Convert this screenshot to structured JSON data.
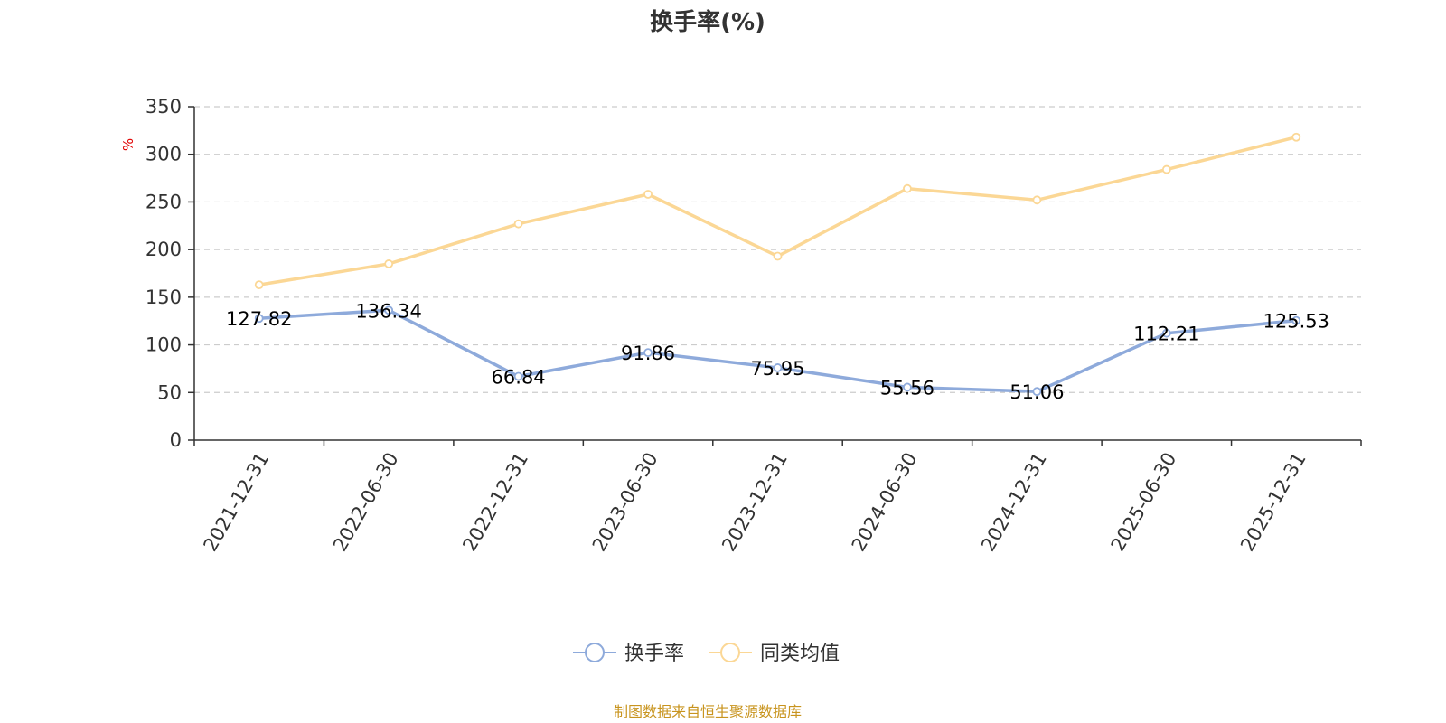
{
  "chart_data": {
    "type": "line",
    "title": "换手率(%)",
    "y_unit": "%",
    "ylim": [
      0,
      350
    ],
    "y_ticks": [
      0,
      50,
      100,
      150,
      200,
      250,
      300,
      350
    ],
    "grid": true,
    "legend_position": "bottom-center",
    "categories": [
      "2021-12-31",
      "2022-06-30",
      "2022-12-31",
      "2023-06-30",
      "2023-12-31",
      "2024-06-30",
      "2024-12-31",
      "2025-06-30",
      "2025-12-31"
    ],
    "series": [
      {
        "name": "换手率",
        "color": "#8eaadb",
        "values": [
          127.82,
          136.34,
          66.84,
          91.86,
          75.95,
          55.56,
          51.06,
          112.21,
          125.53
        ],
        "labels": [
          "127.82",
          "136.34",
          "66.84",
          "91.86",
          "75.95",
          "55.56",
          "51.06",
          "112.21",
          "125.53"
        ],
        "show_labels": true
      },
      {
        "name": "同类均值",
        "color": "#fbd795",
        "values": [
          163,
          185,
          227,
          258,
          193,
          264,
          252,
          284,
          318
        ],
        "show_labels": false
      }
    ]
  },
  "footer": {
    "source": "制图数据来自恒生聚源数据库",
    "source_color": "#c8941e"
  },
  "colors": {
    "unit": "#e00000",
    "axis": "#333333",
    "grid": "#cccccc"
  }
}
